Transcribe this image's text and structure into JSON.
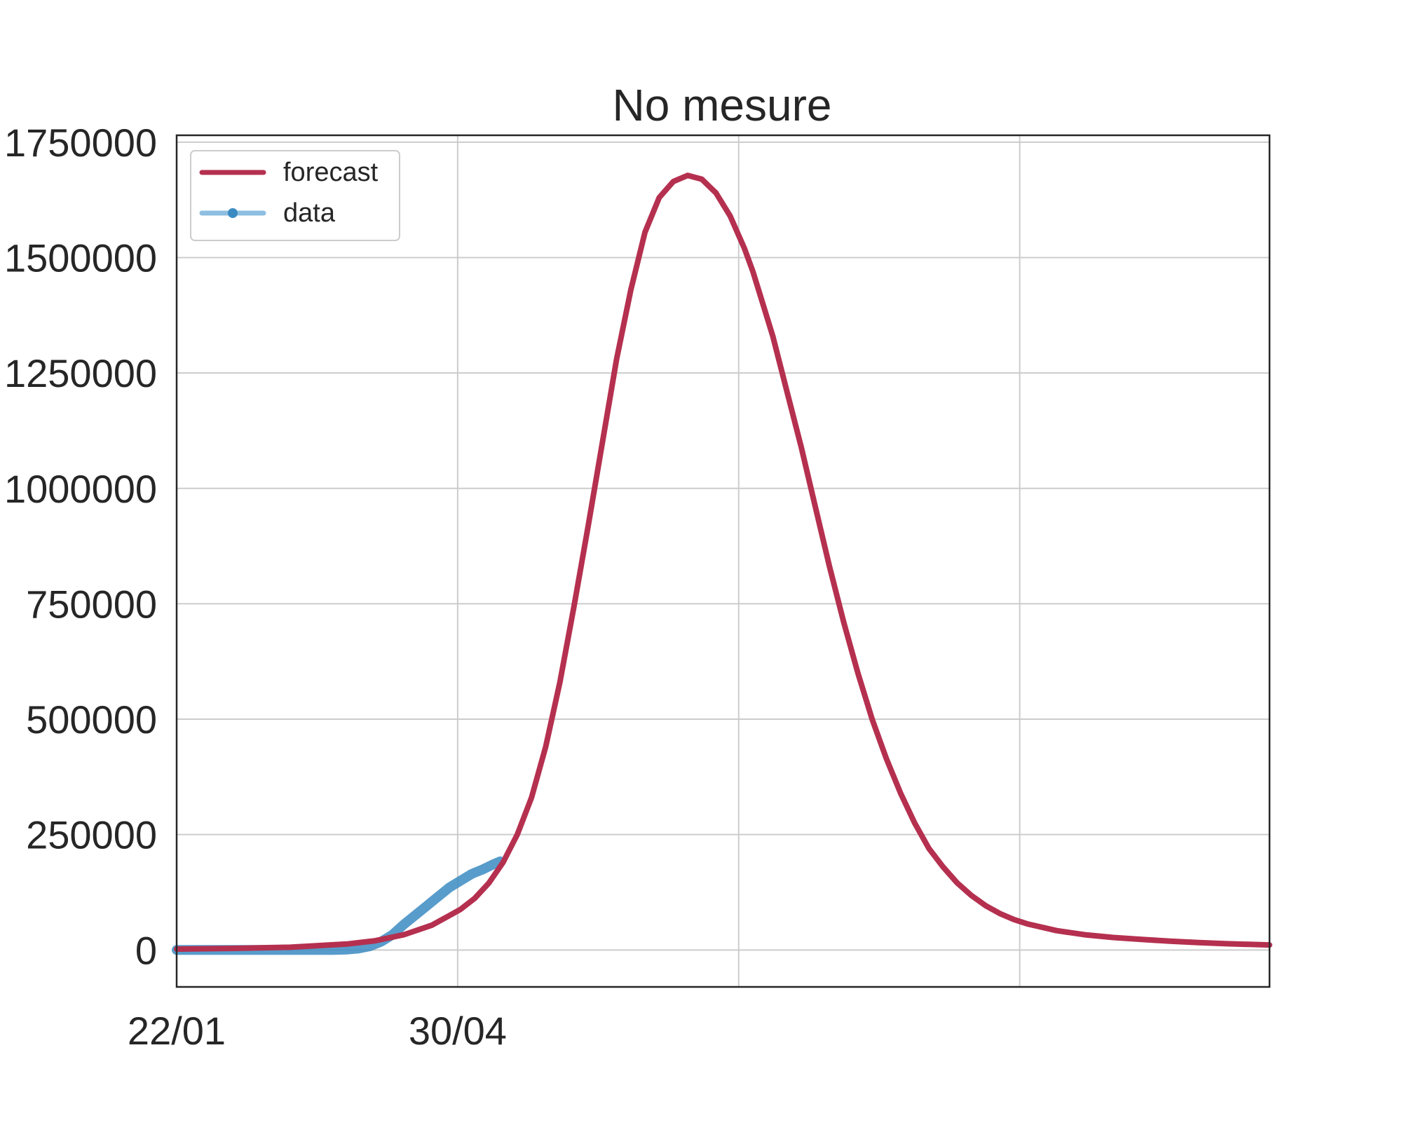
{
  "chart_data": {
    "type": "line",
    "title": "No mesure",
    "xlabel": "",
    "ylabel": "",
    "x_ticks": [
      {
        "day": 0,
        "label": "22/01"
      },
      {
        "day": 99,
        "label": "30/04"
      },
      {
        "day": 198,
        "label": ""
      },
      {
        "day": 297,
        "label": ""
      }
    ],
    "y_ticks": [
      0,
      250000,
      500000,
      750000,
      1000000,
      1250000,
      1500000,
      1750000
    ],
    "ylim": [
      -80000,
      1765000
    ],
    "xlim_days": [
      0,
      385
    ],
    "grid": true,
    "legend_position": "top-left",
    "colors": {
      "forecast": "#b5304f",
      "data": "#3b8bc2",
      "legend_data_line": "#8fbfe0"
    },
    "series": [
      {
        "name": "forecast",
        "x_day": [
          0,
          20,
          40,
          60,
          70,
          80,
          90,
          100,
          105,
          110,
          115,
          120,
          125,
          130,
          135,
          140,
          145,
          150,
          155,
          160,
          165,
          170,
          175,
          180,
          185,
          190,
          195,
          200,
          203,
          206,
          210,
          215,
          220,
          225,
          230,
          235,
          240,
          245,
          250,
          255,
          260,
          265,
          270,
          275,
          280,
          285,
          290,
          295,
          300,
          310,
          320,
          330,
          340,
          350,
          360,
          370,
          385
        ],
        "y": [
          2000,
          3500,
          6000,
          13000,
          20000,
          33000,
          54000,
          88000,
          112000,
          145000,
          190000,
          250000,
          330000,
          440000,
          580000,
          745000,
          920000,
          1100000,
          1280000,
          1430000,
          1555000,
          1630000,
          1665000,
          1678000,
          1670000,
          1640000,
          1590000,
          1520000,
          1470000,
          1410000,
          1330000,
          1210000,
          1090000,
          960000,
          830000,
          710000,
          600000,
          500000,
          415000,
          340000,
          275000,
          220000,
          180000,
          145000,
          118000,
          96000,
          79000,
          66000,
          56000,
          42000,
          33000,
          27000,
          23000,
          19000,
          16000,
          13500,
          11000
        ]
      },
      {
        "name": "data",
        "x_day": [
          0,
          10,
          20,
          30,
          40,
          45,
          50,
          55,
          60,
          64,
          68,
          72,
          76,
          80,
          84,
          88,
          92,
          96,
          100,
          104,
          108,
          112,
          114
        ],
        "y": [
          0,
          0,
          0,
          0,
          0,
          0,
          0,
          0,
          1000,
          3000,
          8000,
          18000,
          33000,
          55000,
          75000,
          95000,
          115000,
          135000,
          150000,
          165000,
          175000,
          187000,
          192000
        ]
      }
    ]
  }
}
